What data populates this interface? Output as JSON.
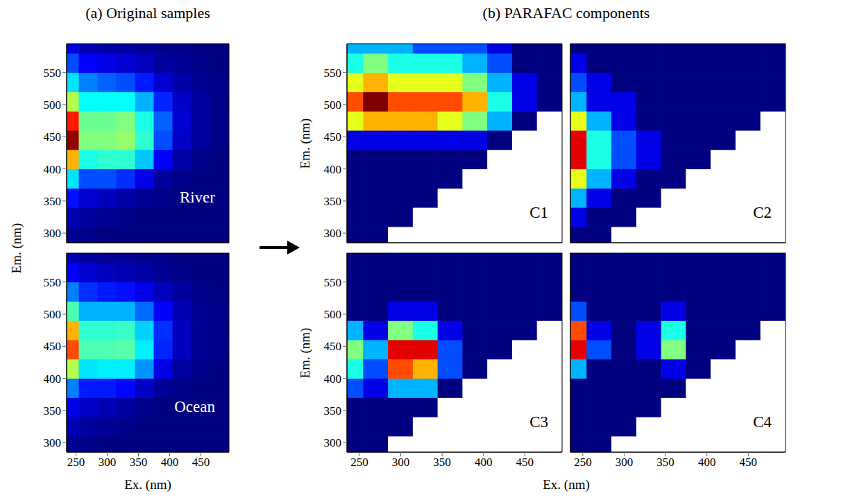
{
  "chart_data": [
    {
      "type": "heatmap",
      "title": "(a) Original samples",
      "xlabel": "Ex. (nm)",
      "ylabel": "Em. (nm)",
      "xlim": [
        235,
        495
      ],
      "ylim": [
        285,
        595
      ],
      "xticks": [
        250,
        300,
        350,
        400,
        450
      ],
      "yticks": [
        300,
        350,
        400,
        450,
        500,
        550
      ],
      "x": [
        240,
        270,
        300,
        330,
        360,
        390,
        420,
        450,
        480
      ],
      "y": [
        295,
        325,
        355,
        385,
        415,
        445,
        475,
        505,
        535,
        565,
        595
      ],
      "color_range": [
        0,
        1
      ],
      "panels": [
        {
          "label": "River",
          "tick_labels": "y",
          "cells": [
            [
              0.02,
              0.01,
              0,
              0,
              0,
              0,
              0,
              0,
              0
            ],
            [
              0.05,
              0.03,
              0.02,
              0.01,
              0,
              0,
              0,
              0,
              0
            ],
            [
              0.14,
              0.08,
              0.06,
              0.04,
              0.02,
              0.01,
              0,
              0,
              0
            ],
            [
              0.35,
              0.2,
              0.2,
              0.17,
              0.1,
              0.03,
              0.01,
              0,
              0
            ],
            [
              0.7,
              0.4,
              0.42,
              0.42,
              0.32,
              0.12,
              0.04,
              0.01,
              0
            ],
            [
              0.98,
              0.5,
              0.5,
              0.52,
              0.42,
              0.2,
              0.07,
              0.03,
              0.01
            ],
            [
              0.85,
              0.48,
              0.48,
              0.5,
              0.4,
              0.22,
              0.08,
              0.03,
              0.01
            ],
            [
              0.55,
              0.38,
              0.38,
              0.38,
              0.3,
              0.16,
              0.07,
              0.03,
              0.01
            ],
            [
              0.35,
              0.25,
              0.22,
              0.2,
              0.15,
              0.08,
              0.04,
              0.02,
              0.01
            ],
            [
              0.2,
              0.12,
              0.1,
              0.08,
              0.06,
              0.03,
              0.02,
              0.01,
              0
            ],
            [
              0.1,
              0.05,
              0.04,
              0.03,
              0.02,
              0.01,
              0.01,
              0,
              0
            ]
          ]
        },
        {
          "label": "Ocean",
          "tick_labels": true,
          "cells": [
            [
              0.02,
              0.01,
              0,
              0,
              0,
              0,
              0,
              0,
              0
            ],
            [
              0.05,
              0.03,
              0.02,
              0.01,
              0,
              0,
              0,
              0,
              0
            ],
            [
              0.1,
              0.07,
              0.05,
              0.03,
              0.01,
              0,
              0,
              0,
              0
            ],
            [
              0.25,
              0.15,
              0.15,
              0.13,
              0.07,
              0.02,
              0.01,
              0,
              0
            ],
            [
              0.55,
              0.35,
              0.36,
              0.36,
              0.27,
              0.1,
              0.03,
              0.01,
              0
            ],
            [
              0.8,
              0.45,
              0.45,
              0.46,
              0.36,
              0.16,
              0.06,
              0.02,
              0.01
            ],
            [
              0.7,
              0.42,
              0.42,
              0.43,
              0.33,
              0.17,
              0.06,
              0.02,
              0.01
            ],
            [
              0.45,
              0.3,
              0.3,
              0.3,
              0.23,
              0.12,
              0.05,
              0.02,
              0.01
            ],
            [
              0.25,
              0.17,
              0.15,
              0.14,
              0.1,
              0.06,
              0.03,
              0.01,
              0
            ],
            [
              0.12,
              0.08,
              0.06,
              0.05,
              0.04,
              0.02,
              0.01,
              0,
              0
            ],
            [
              0.05,
              0.03,
              0.02,
              0.02,
              0.01,
              0.01,
              0,
              0,
              0
            ]
          ]
        }
      ]
    },
    {
      "type": "contour",
      "title": "(b) PARAFAC components",
      "xlabel": "Ex. (nm)",
      "ylabel": "Em. (nm)",
      "xlim": [
        235,
        495
      ],
      "ylim": [
        285,
        595
      ],
      "xticks": [
        250,
        300,
        350,
        400,
        450
      ],
      "yticks": [
        300,
        350,
        400,
        450,
        500,
        550
      ],
      "x": [
        240,
        270,
        300,
        330,
        360,
        390,
        420,
        450,
        480
      ],
      "y": [
        295,
        325,
        355,
        385,
        415,
        445,
        475,
        505,
        535,
        565,
        595
      ],
      "color_range": [
        0,
        1
      ],
      "panels": [
        {
          "label": "C1",
          "tick_labels": "y",
          "cells": [
            [
              0,
              0,
              null,
              null,
              null,
              null,
              null,
              null,
              null
            ],
            [
              0,
              0,
              0,
              null,
              null,
              null,
              null,
              null,
              null
            ],
            [
              0,
              0,
              0,
              0,
              null,
              null,
              null,
              null,
              null
            ],
            [
              0,
              0,
              0,
              0,
              0,
              null,
              null,
              null,
              null
            ],
            [
              0.02,
              0.02,
              0.02,
              0.02,
              0.02,
              0.01,
              null,
              null,
              null
            ],
            [
              0.15,
              0.18,
              0.15,
              0.15,
              0.14,
              0.1,
              0.04,
              null,
              null
            ],
            [
              0.6,
              0.75,
              0.7,
              0.7,
              0.68,
              0.55,
              0.3,
              0.08,
              null
            ],
            [
              0.8,
              1.0,
              0.85,
              0.82,
              0.82,
              0.7,
              0.42,
              0.12,
              0.02
            ],
            [
              0.65,
              0.75,
              0.68,
              0.66,
              0.65,
              0.55,
              0.35,
              0.1,
              0.02
            ],
            [
              0.45,
              0.5,
              0.45,
              0.44,
              0.42,
              0.35,
              0.22,
              0.07,
              0.01
            ],
            [
              0.3,
              0.33,
              0.3,
              0.29,
              0.27,
              0.22,
              0.14,
              0.05,
              0.01
            ]
          ]
        },
        {
          "label": "C2",
          "tick_labels": false,
          "cells": [
            [
              0.02,
              0.01,
              null,
              null,
              null,
              null,
              null,
              null,
              null
            ],
            [
              0.1,
              0.04,
              0.01,
              null,
              null,
              null,
              null,
              null,
              null
            ],
            [
              0.3,
              0.12,
              0.05,
              0.02,
              null,
              null,
              null,
              null,
              null
            ],
            [
              0.65,
              0.3,
              0.15,
              0.06,
              0.01,
              null,
              null,
              null,
              null
            ],
            [
              0.95,
              0.42,
              0.25,
              0.1,
              0.03,
              0,
              null,
              null,
              null
            ],
            [
              0.9,
              0.42,
              0.25,
              0.11,
              0.03,
              0,
              0,
              null,
              null
            ],
            [
              0.6,
              0.3,
              0.18,
              0.08,
              0.02,
              0,
              0,
              0,
              null
            ],
            [
              0.35,
              0.18,
              0.1,
              0.05,
              0.01,
              0,
              0,
              0,
              0
            ],
            [
              0.2,
              0.1,
              0.05,
              0.02,
              0.01,
              0,
              0,
              0,
              0
            ],
            [
              0.1,
              0.05,
              0.02,
              0.01,
              0,
              0,
              0,
              0,
              0
            ],
            [
              0.05,
              0.02,
              0.01,
              0,
              0,
              0,
              0,
              0,
              0
            ]
          ]
        },
        {
          "label": "C3",
          "tick_labels": true,
          "cells": [
            [
              0,
              0,
              null,
              null,
              null,
              null,
              null,
              null,
              null
            ],
            [
              0,
              0,
              0,
              null,
              null,
              null,
              null,
              null,
              null
            ],
            [
              0.02,
              0.01,
              0.03,
              0.02,
              null,
              null,
              null,
              null,
              null
            ],
            [
              0.2,
              0.12,
              0.35,
              0.3,
              0.06,
              null,
              null,
              null,
              null
            ],
            [
              0.45,
              0.28,
              0.8,
              0.75,
              0.2,
              0.02,
              null,
              null,
              null
            ],
            [
              0.55,
              0.32,
              0.95,
              0.9,
              0.25,
              0.02,
              0,
              null,
              null
            ],
            [
              0.3,
              0.18,
              0.5,
              0.45,
              0.12,
              0.01,
              0,
              0,
              null
            ],
            [
              0.08,
              0.05,
              0.12,
              0.1,
              0.03,
              0,
              0,
              0,
              0
            ],
            [
              0.01,
              0.01,
              0.02,
              0.02,
              0,
              0,
              0,
              0,
              0
            ],
            [
              0,
              0,
              0,
              0,
              0,
              0,
              0,
              0,
              0
            ],
            [
              0,
              0,
              0,
              0,
              0,
              0,
              0,
              0,
              0
            ]
          ]
        },
        {
          "label": "C4",
          "tick_labels": "x",
          "cells": [
            [
              0,
              0,
              null,
              null,
              null,
              null,
              null,
              null,
              null
            ],
            [
              0,
              0,
              0,
              null,
              null,
              null,
              null,
              null,
              null
            ],
            [
              0,
              0,
              0,
              0,
              null,
              null,
              null,
              null,
              null
            ],
            [
              0.02,
              0,
              0,
              0,
              0.02,
              null,
              null,
              null,
              null
            ],
            [
              0.3,
              0.05,
              0,
              0.02,
              0.15,
              0.01,
              null,
              null,
              null
            ],
            [
              0.9,
              0.2,
              0.01,
              0.1,
              0.5,
              0.08,
              0,
              null,
              null
            ],
            [
              0.8,
              0.18,
              0.01,
              0.1,
              0.45,
              0.07,
              0,
              0,
              null
            ],
            [
              0.25,
              0.05,
              0,
              0.03,
              0.12,
              0.02,
              0,
              0,
              0
            ],
            [
              0.03,
              0.01,
              0,
              0,
              0.01,
              0,
              0,
              0,
              0
            ],
            [
              0,
              0,
              0,
              0,
              0,
              0,
              0,
              0,
              0
            ],
            [
              0,
              0,
              0,
              0,
              0,
              0,
              0,
              0,
              0
            ]
          ]
        }
      ]
    }
  ]
}
